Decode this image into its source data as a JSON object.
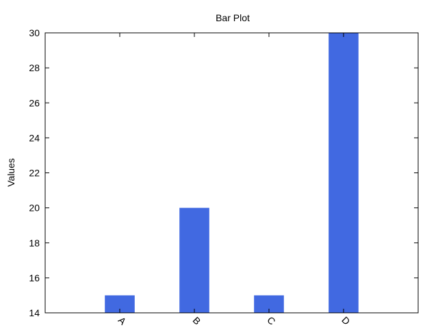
{
  "chart_data": {
    "type": "bar",
    "title": "Bar Plot",
    "xlabel": "",
    "ylabel": "Values",
    "categories": [
      "A",
      "B",
      "C",
      "D"
    ],
    "values": [
      15,
      20,
      15,
      30
    ],
    "ylim": [
      14,
      30
    ],
    "yticks": [
      14,
      16,
      18,
      20,
      22,
      24,
      26,
      28,
      30
    ],
    "grid": false,
    "bar_color": "#4169E1",
    "xtick_rotation_deg": -45
  }
}
